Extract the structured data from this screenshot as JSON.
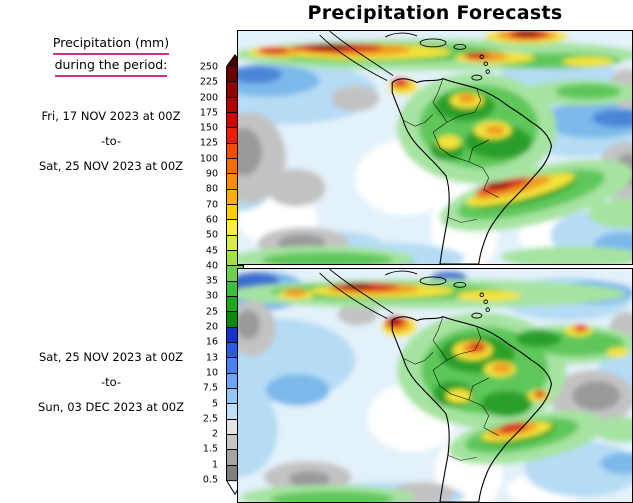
{
  "title": "Precipitation Forecasts",
  "sidebar": {
    "legend_title_line1": "Precipitation (mm)",
    "legend_title_line2": "during the period:",
    "period1": {
      "from": "Fri, 17 NOV 2023 at 00Z",
      "separator": "-to-",
      "to": "Sat, 25 NOV 2023 at 00Z"
    },
    "period2": {
      "from": "Sat, 25 NOV 2023 at 00Z",
      "separator": "-to-",
      "to": "Sun, 03 DEC 2023 at 00Z"
    }
  },
  "colors": {
    "legend_underline": "#cc2f8c",
    "map_border": "#000000"
  },
  "colorbar": {
    "tick_labels": [
      "250",
      "225",
      "200",
      "175",
      "150",
      "125",
      "100",
      "90",
      "80",
      "70",
      "60",
      "50",
      "45",
      "40",
      "35",
      "30",
      "25",
      "20",
      "16",
      "13",
      "10",
      "7.5",
      "5",
      "2.5",
      "2",
      "1.5",
      "1",
      "0.5"
    ],
    "segment_colors": [
      "#6b0000",
      "#8f0000",
      "#b30000",
      "#d40000",
      "#ee1c00",
      "#fa4a00",
      "#fc6d00",
      "#fd8d00",
      "#feae00",
      "#ffcf00",
      "#fdee3a",
      "#d7ec45",
      "#a4e04e",
      "#6fd14b",
      "#3dbf3d",
      "#1ea81e",
      "#0a8a0a",
      "#1432c8",
      "#2a5ae6",
      "#4683f0",
      "#6aa6f5",
      "#93c6f7",
      "#bfdff7",
      "#e4e4e4",
      "#c6c6c6",
      "#a5a5a5",
      "#7f7f7f"
    ],
    "top_arrow_color": "#4a0000",
    "bottom_arrow_color": "#ffffff"
  },
  "chart_data": {
    "type": "heatmap",
    "title": "Precipitation Forecasts",
    "units": "mm",
    "legend_position": "left",
    "scale_levels_mm": [
      0.5,
      1,
      1.5,
      2,
      2.5,
      5,
      7.5,
      10,
      13,
      16,
      20,
      25,
      30,
      35,
      40,
      45,
      50,
      60,
      70,
      80,
      90,
      100,
      125,
      150,
      175,
      200,
      225,
      250
    ],
    "panels": [
      {
        "name": "panel-1",
        "period_start": "Fri, 17 NOV 2023 at 00Z",
        "period_end": "Sat, 25 NOV 2023 at 00Z"
      },
      {
        "name": "panel-2",
        "period_start": "Sat, 25 NOV 2023 at 00Z",
        "period_end": "Sun, 03 DEC 2023 at 00Z"
      }
    ]
  }
}
